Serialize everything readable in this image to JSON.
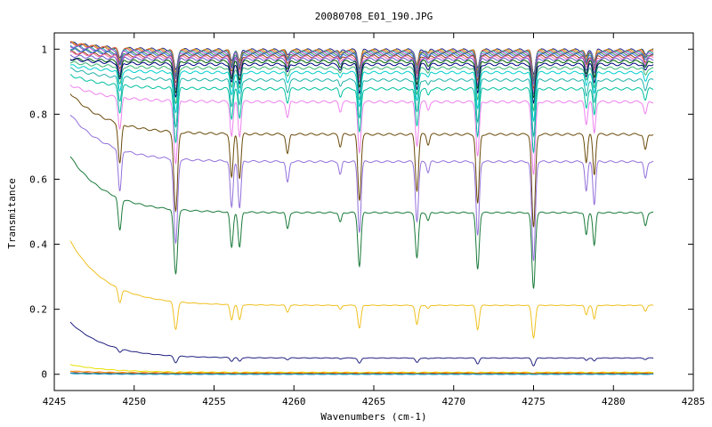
{
  "chart_data": {
    "type": "line",
    "title": "20080708_E01_190.JPG",
    "xlabel": "Wavenumbers (cm-1)",
    "ylabel": "Transmitance",
    "xlim": [
      4245,
      4285
    ],
    "ylim": [
      -0.05,
      1.05
    ],
    "xticks": [
      4245,
      4250,
      4255,
      4260,
      4265,
      4270,
      4275,
      4280,
      4285
    ],
    "yticks": [
      0,
      0.2,
      0.4,
      0.6,
      0.8,
      1
    ],
    "ytick_labels": [
      "0",
      "0.2",
      "0.4",
      "0.6",
      "0.8",
      "1"
    ],
    "x_range": [
      4246,
      4282.5
    ],
    "grid": false,
    "absorption_lines": [
      {
        "x": 4249.1,
        "depth": 0.2,
        "width": 0.14
      },
      {
        "x": 4252.6,
        "depth": 0.4,
        "width": 0.16
      },
      {
        "x": 4256.1,
        "depth": 0.22,
        "width": 0.13
      },
      {
        "x": 4256.6,
        "depth": 0.22,
        "width": 0.13
      },
      {
        "x": 4259.6,
        "depth": 0.1,
        "width": 0.13
      },
      {
        "x": 4262.9,
        "depth": 0.06,
        "width": 0.12
      },
      {
        "x": 4264.1,
        "depth": 0.33,
        "width": 0.14
      },
      {
        "x": 4267.7,
        "depth": 0.28,
        "width": 0.14
      },
      {
        "x": 4268.4,
        "depth": 0.05,
        "width": 0.12
      },
      {
        "x": 4271.5,
        "depth": 0.35,
        "width": 0.14
      },
      {
        "x": 4275.0,
        "depth": 0.47,
        "width": 0.15
      },
      {
        "x": 4278.3,
        "depth": 0.14,
        "width": 0.12
      },
      {
        "x": 4278.8,
        "depth": 0.2,
        "width": 0.12
      },
      {
        "x": 4282.0,
        "depth": 0.08,
        "width": 0.13
      }
    ],
    "series": [
      {
        "baseline": 0.997,
        "start": 1.02,
        "color": "#1f1f8f"
      },
      {
        "baseline": 0.995,
        "start": 1.02,
        "color": "#c8a000"
      },
      {
        "baseline": 0.993,
        "start": 1.02,
        "color": "#d9534f"
      },
      {
        "baseline": 0.991,
        "start": 1.01,
        "color": "#20a0a0"
      },
      {
        "baseline": 0.988,
        "start": 1.01,
        "color": "#9a4bd0"
      },
      {
        "baseline": 0.985,
        "start": 1.0,
        "color": "#2e8b57"
      },
      {
        "baseline": 0.982,
        "start": 1.0,
        "color": "#4169e1"
      },
      {
        "baseline": 0.978,
        "start": 0.99,
        "color": "#8b4513"
      },
      {
        "baseline": 0.974,
        "start": 0.99,
        "color": "#ff69b4"
      },
      {
        "baseline": 0.969,
        "start": 0.98,
        "color": "#6a5acd"
      },
      {
        "baseline": 0.962,
        "start": 0.97,
        "color": "#006400"
      },
      {
        "baseline": 0.953,
        "start": 0.97,
        "color": "#000080"
      },
      {
        "baseline": 0.942,
        "start": 0.96,
        "color": "#3cb371"
      },
      {
        "baseline": 0.928,
        "start": 0.95,
        "color": "#00ced1"
      },
      {
        "baseline": 0.905,
        "start": 0.94,
        "color": "#20b2aa"
      },
      {
        "baseline": 0.878,
        "start": 0.92,
        "color": "#00c0a0"
      },
      {
        "baseline": 0.838,
        "start": 0.89,
        "color": "#ee82ee"
      },
      {
        "baseline": 0.738,
        "start": 0.865,
        "color": "#6b4a0a"
      },
      {
        "baseline": 0.654,
        "start": 0.8,
        "color": "#9370db"
      },
      {
        "baseline": 0.497,
        "start": 0.67,
        "color": "#1a7a3a"
      },
      {
        "baseline": 0.212,
        "start": 0.41,
        "color": "#f0c020"
      },
      {
        "baseline": 0.05,
        "start": 0.16,
        "color": "#202080"
      },
      {
        "baseline": 0.006,
        "start": 0.03,
        "color": "#e8e000"
      },
      {
        "baseline": 0.004,
        "start": 0.01,
        "color": "#ff8c00"
      },
      {
        "baseline": 0.002,
        "start": 0.005,
        "color": "#d02020"
      },
      {
        "baseline": 0.001,
        "start": 0.004,
        "color": "#3a9a3a"
      },
      {
        "baseline": 0.0,
        "start": 0.003,
        "color": "#4060c0"
      },
      {
        "baseline": 0.0,
        "start": 0.002,
        "color": "#20a0c0"
      }
    ]
  }
}
